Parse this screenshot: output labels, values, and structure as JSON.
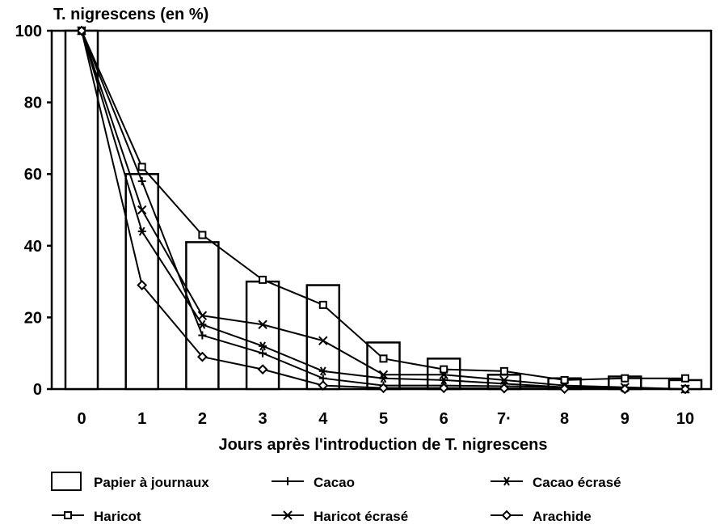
{
  "chart_data": {
    "type": "bar",
    "title": "",
    "ylabel": "T. nigrescens (en %)",
    "xlabel": "Jours après l'introduction de T. nigrescens",
    "ylim": [
      0,
      100
    ],
    "y_ticks": [
      "100",
      "80",
      "60",
      "40",
      "20",
      "0"
    ],
    "x_tick_labels": [
      "0",
      "1",
      "2",
      "3",
      "4",
      "5",
      "6",
      "7·",
      "8",
      "9",
      "10"
    ],
    "x": [
      0,
      1,
      2,
      3,
      4,
      5,
      6,
      7,
      8,
      9,
      10
    ],
    "grid": false,
    "legend_position": "bottom",
    "bar_series": {
      "name": "Papier à journaux",
      "values": [
        100,
        60,
        41,
        30,
        29,
        13,
        8.5,
        4,
        3,
        3.5,
        2.5
      ]
    },
    "series": [
      {
        "name": "Cacao",
        "marker": "plus",
        "values": [
          100,
          58,
          15,
          10,
          3,
          1,
          1,
          0.8,
          0.5,
          0.2,
          0
        ]
      },
      {
        "name": "Cacao écrasé",
        "marker": "asterisk",
        "values": [
          100,
          44,
          18,
          12,
          5,
          3,
          2.5,
          1.5,
          0.5,
          0.2,
          0
        ]
      },
      {
        "name": "Haricot",
        "marker": "square",
        "values": [
          100,
          62,
          43,
          30.5,
          23.5,
          8.5,
          5.5,
          5,
          2.5,
          3,
          3
        ]
      },
      {
        "name": "Haricot écrasé",
        "marker": "x",
        "values": [
          100,
          50,
          20.5,
          18,
          13.5,
          4,
          4,
          2.5,
          1,
          0.5,
          0
        ]
      },
      {
        "name": "Arachide",
        "marker": "diamond",
        "values": [
          100,
          29,
          9,
          5.5,
          1,
          0.3,
          0.3,
          0.2,
          0.1,
          0,
          0
        ]
      }
    ]
  }
}
